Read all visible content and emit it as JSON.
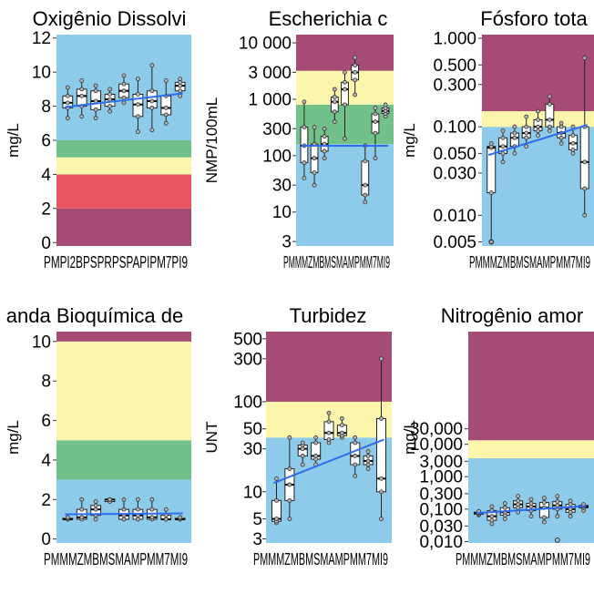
{
  "colors": {
    "blue": "#8ecbea",
    "green": "#72c08a",
    "yellow": "#fbf6ac",
    "red": "#ec5662",
    "purple": "#a64b73",
    "trend": "#2f6df0",
    "box_fill": "#ffffff",
    "point_fill": "#b5b5b5"
  },
  "chart_data": [
    {
      "type": "boxplot",
      "title": "Oxigênio Dissolvi",
      "ylabel": "mg/L",
      "scale": "linear",
      "ylim": [
        -0.2,
        12.2
      ],
      "ticks": [
        0,
        2,
        4,
        6,
        8,
        10,
        12
      ],
      "tick_labels": [
        "0",
        "2",
        "4",
        "6",
        "8",
        "10",
        "12"
      ],
      "bands": [
        {
          "from": -0.2,
          "to": 2,
          "color": "purple"
        },
        {
          "from": 2,
          "to": 4,
          "color": "red"
        },
        {
          "from": 4,
          "to": 5,
          "color": "yellow"
        },
        {
          "from": 5,
          "to": 6,
          "color": "green"
        },
        {
          "from": 6,
          "to": 12.2,
          "color": "blue"
        }
      ],
      "x_label_text": "PMPI2BPSPRPSPAPIPM7PI9",
      "boxes": [
        {
          "min": 7.3,
          "q1": 7.9,
          "median": 8.2,
          "q3": 8.6,
          "max": 9.1
        },
        {
          "min": 7.4,
          "q1": 8.0,
          "median": 8.6,
          "q3": 9.0,
          "max": 9.5
        },
        {
          "min": 7.3,
          "q1": 7.8,
          "median": 8.3,
          "q3": 8.9,
          "max": 9.2
        },
        {
          "min": 7.7,
          "q1": 8.0,
          "median": 8.4,
          "q3": 8.7,
          "max": 9.0
        },
        {
          "min": 8.2,
          "q1": 8.5,
          "median": 8.9,
          "q3": 9.3,
          "max": 9.8
        },
        {
          "min": 6.5,
          "q1": 7.4,
          "median": 8.1,
          "q3": 8.7,
          "max": 9.6
        },
        {
          "min": 6.6,
          "q1": 7.9,
          "median": 8.3,
          "q3": 8.9,
          "max": 10.4
        },
        {
          "min": 7.0,
          "q1": 7.5,
          "median": 7.9,
          "q3": 8.6,
          "max": 9.5
        },
        {
          "min": 8.6,
          "q1": 8.9,
          "median": 9.2,
          "q3": 9.4,
          "max": 9.6
        }
      ],
      "trend": [
        7.95,
        8.75
      ]
    },
    {
      "type": "boxplot",
      "title": "Escherichia c",
      "ylabel": "NMP/100mL",
      "scale": "log",
      "ylim": [
        2.5,
        14000
      ],
      "ticks": [
        3,
        10,
        30,
        100,
        300,
        1000,
        3000,
        10000
      ],
      "tick_labels": [
        "3",
        "10",
        "30",
        "100",
        "300",
        "1 000",
        "3 000",
        "10 000"
      ],
      "bands": [
        {
          "from": 2.5,
          "to": 160,
          "color": "blue"
        },
        {
          "from": 160,
          "to": 800,
          "color": "green"
        },
        {
          "from": 800,
          "to": 3200,
          "color": "yellow"
        },
        {
          "from": 3200,
          "to": 14000,
          "color": "purple"
        }
      ],
      "x_label_text": "PMMMZMBMSMAMPMM7MI9",
      "boxes": [
        {
          "min": 40,
          "q1": 75,
          "median": 150,
          "q3": 320,
          "max": 900
        },
        {
          "min": 30,
          "q1": 50,
          "median": 90,
          "q3": 160,
          "max": 320
        },
        {
          "min": 90,
          "q1": 120,
          "median": 160,
          "q3": 220,
          "max": 300
        },
        {
          "min": 400,
          "q1": 600,
          "median": 900,
          "q3": 1100,
          "max": 1500
        },
        {
          "min": 200,
          "q1": 800,
          "median": 1500,
          "q3": 2000,
          "max": 3000
        },
        {
          "min": 1200,
          "q1": 2200,
          "median": 3000,
          "q3": 4000,
          "max": 5500
        },
        {
          "min": 15,
          "q1": 20,
          "median": 30,
          "q3": 80,
          "max": 150
        },
        {
          "min": 90,
          "q1": 250,
          "median": 400,
          "q3": 550,
          "max": 700
        },
        {
          "min": 500,
          "q1": 560,
          "median": 620,
          "q3": 700,
          "max": 800
        }
      ],
      "trend": [
        150,
        150
      ]
    },
    {
      "type": "boxplot",
      "title": "Fósforo tota",
      "ylabel": "mg/L",
      "scale": "log",
      "ylim": [
        0.0045,
        1.1
      ],
      "ticks": [
        0.005,
        0.01,
        0.03,
        0.05,
        0.1,
        0.3,
        0.5,
        1.0
      ],
      "tick_labels": [
        "0.005",
        "0.010",
        "0.030",
        "0.050",
        "0.100",
        "0.300",
        "0.500",
        "1.000"
      ],
      "bands": [
        {
          "from": 0.0045,
          "to": 0.1,
          "color": "blue"
        },
        {
          "from": 0.1,
          "to": 0.15,
          "color": "yellow"
        },
        {
          "from": 0.15,
          "to": 1.1,
          "color": "purple"
        }
      ],
      "x_label_text": "PMMMZMBMSMAMPMM7MI9",
      "boxes": [
        {
          "min": 0.005,
          "q1": 0.018,
          "median": 0.058,
          "q3": 0.06,
          "max": 0.065
        },
        {
          "min": 0.04,
          "q1": 0.05,
          "median": 0.06,
          "q3": 0.075,
          "max": 0.09
        },
        {
          "min": 0.05,
          "q1": 0.06,
          "median": 0.075,
          "q3": 0.085,
          "max": 0.1
        },
        {
          "min": 0.06,
          "q1": 0.075,
          "median": 0.085,
          "q3": 0.1,
          "max": 0.13
        },
        {
          "min": 0.08,
          "q1": 0.09,
          "median": 0.1,
          "q3": 0.12,
          "max": 0.15
        },
        {
          "min": 0.09,
          "q1": 0.1,
          "median": 0.12,
          "q3": 0.18,
          "max": 0.22
        },
        {
          "min": 0.065,
          "q1": 0.075,
          "median": 0.085,
          "q3": 0.1,
          "max": 0.11
        },
        {
          "min": 0.05,
          "q1": 0.055,
          "median": 0.065,
          "q3": 0.08,
          "max": 0.1
        },
        {
          "min": 0.01,
          "q1": 0.02,
          "median": 0.04,
          "q3": 0.1,
          "max": 0.6
        }
      ],
      "outliers": [
        [
          0,
          0.005
        ]
      ],
      "trend": [
        0.048,
        0.105
      ]
    },
    {
      "type": "boxplot",
      "title": "anda Bioquímica de",
      "ylabel": "mg/L",
      "scale": "linear",
      "ylim": [
        -0.2,
        10.5
      ],
      "ticks": [
        0,
        2,
        4,
        6,
        8,
        10
      ],
      "tick_labels": [
        "0",
        "2",
        "4",
        "6",
        "8",
        "10"
      ],
      "bands": [
        {
          "from": -0.2,
          "to": 3,
          "color": "blue"
        },
        {
          "from": 3,
          "to": 5,
          "color": "green"
        },
        {
          "from": 5,
          "to": 10,
          "color": "yellow"
        },
        {
          "from": 10,
          "to": 10.5,
          "color": "purple"
        }
      ],
      "x_label_text": "PMMMZMBMSMAMPMM7MI9",
      "boxes": [
        {
          "min": 1.0,
          "q1": 1.0,
          "median": 1.0,
          "q3": 1.05,
          "max": 1.1
        },
        {
          "min": 1.0,
          "q1": 1.0,
          "median": 1.1,
          "q3": 1.5,
          "max": 2.0
        },
        {
          "min": 1.0,
          "q1": 1.2,
          "median": 1.5,
          "q3": 1.7,
          "max": 1.9
        },
        {
          "min": 1.9,
          "q1": 1.9,
          "median": 2.0,
          "q3": 2.0,
          "max": 2.0
        },
        {
          "min": 1.0,
          "q1": 1.0,
          "median": 1.2,
          "q3": 1.5,
          "max": 2.0
        },
        {
          "min": 1.0,
          "q1": 1.0,
          "median": 1.2,
          "q3": 1.5,
          "max": 2.0
        },
        {
          "min": 1.0,
          "q1": 1.0,
          "median": 1.1,
          "q3": 1.5,
          "max": 2.0
        },
        {
          "min": 1.0,
          "q1": 1.0,
          "median": 1.0,
          "q3": 1.2,
          "max": 1.5
        },
        {
          "min": 1.0,
          "q1": 1.0,
          "median": 1.0,
          "q3": 1.05,
          "max": 1.1
        }
      ],
      "trend": [
        1.25,
        1.3
      ]
    },
    {
      "type": "boxplot",
      "title": "Turbidez",
      "ylabel": "UNT",
      "scale": "log",
      "ylim": [
        2.7,
        600
      ],
      "ticks": [
        3,
        5,
        10,
        30,
        50,
        100,
        300,
        500
      ],
      "tick_labels": [
        "3",
        "5",
        "10",
        "30",
        "50",
        "100",
        "300",
        "500"
      ],
      "bands": [
        {
          "from": 2.7,
          "to": 40,
          "color": "blue"
        },
        {
          "from": 40,
          "to": 100,
          "color": "yellow"
        },
        {
          "from": 100,
          "to": 600,
          "color": "purple"
        }
      ],
      "x_label_text": "PMMMZMBMSMAMPMM7MI9",
      "boxes": [
        {
          "min": 4.5,
          "q1": 4.7,
          "median": 5.0,
          "q3": 8,
          "max": 14
        },
        {
          "min": 5,
          "q1": 8,
          "median": 12,
          "q3": 18,
          "max": 40
        },
        {
          "min": 20,
          "q1": 25,
          "median": 30,
          "q3": 33,
          "max": 35
        },
        {
          "min": 20,
          "q1": 23,
          "median": 25,
          "q3": 35,
          "max": 40
        },
        {
          "min": 35,
          "q1": 38,
          "median": 45,
          "q3": 60,
          "max": 75
        },
        {
          "min": 40,
          "q1": 42,
          "median": 45,
          "q3": 55,
          "max": 65
        },
        {
          "min": 15,
          "q1": 20,
          "median": 25,
          "q3": 35,
          "max": 40
        },
        {
          "min": 18,
          "q1": 20,
          "median": 22,
          "q3": 25,
          "max": 28
        },
        {
          "min": 5,
          "q1": 10,
          "median": 14,
          "q3": 65,
          "max": 300
        }
      ],
      "trend": [
        12.5,
        38
      ]
    },
    {
      "type": "boxplot",
      "title": "Nitrogênio amor",
      "ylabel": "mg/L",
      "scale": "log",
      "ylim": [
        0.009,
        30000
      ],
      "ticks": [
        0.01,
        0.03,
        0.1,
        0.3,
        1,
        3,
        10,
        30
      ],
      "tick_labels": [
        "0,010",
        "0,030",
        "0,100",
        "0,300",
        "1,000",
        "3,000",
        "10,000",
        "30,000"
      ],
      "bands": [
        {
          "from": 0.009,
          "to": 3.7,
          "color": "blue"
        },
        {
          "from": 3.7,
          "to": 13.3,
          "color": "yellow"
        },
        {
          "from": 13.3,
          "to": 30000,
          "color": "purple"
        }
      ],
      "x_label_text": "PMMMZMBMSMAMPMM7MI9",
      "boxes": [
        {
          "min": 0.065,
          "q1": 0.07,
          "median": 0.075,
          "q3": 0.08,
          "max": 0.085
        },
        {
          "min": 0.035,
          "q1": 0.045,
          "median": 0.06,
          "q3": 0.09,
          "max": 0.12
        },
        {
          "min": 0.05,
          "q1": 0.065,
          "median": 0.08,
          "q3": 0.11,
          "max": 0.15
        },
        {
          "min": 0.08,
          "q1": 0.11,
          "median": 0.14,
          "q3": 0.18,
          "max": 0.25
        },
        {
          "min": 0.06,
          "q1": 0.09,
          "median": 0.12,
          "q3": 0.15,
          "max": 0.2
        },
        {
          "min": 0.04,
          "q1": 0.055,
          "median": 0.11,
          "q3": 0.16,
          "max": 0.22
        },
        {
          "min": 0.06,
          "q1": 0.1,
          "median": 0.13,
          "q3": 0.17,
          "max": 0.25
        },
        {
          "min": 0.06,
          "q1": 0.08,
          "median": 0.1,
          "q3": 0.14,
          "max": 0.18
        },
        {
          "min": 0.09,
          "q1": 0.11,
          "median": 0.12,
          "q3": 0.13,
          "max": 0.14
        }
      ],
      "outliers": [
        [
          6,
          0.011
        ]
      ],
      "trend": [
        0.075,
        0.125
      ]
    }
  ]
}
